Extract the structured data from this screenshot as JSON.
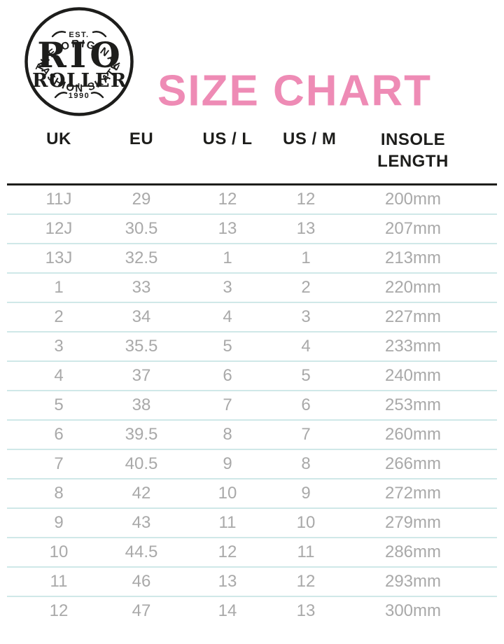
{
  "header": {
    "title": "SIZE CHART",
    "logo": {
      "top_text": "THE ORIGINAL",
      "est_text": "EST.",
      "brand_line1": "RIO",
      "brand_line2": "ROLLER",
      "year_text": "1990",
      "bottom_text": "FASHION SKATE"
    }
  },
  "colors": {
    "ink": "#1d1d1b",
    "accent-pink": "#ee8bb5",
    "body-gray": "#a9a9a9",
    "divider-teal": "#cfe8e8"
  },
  "table": {
    "headers": [
      "UK",
      "EU",
      "US / L",
      "US / M",
      "INSOLE LENGTH"
    ],
    "rows": [
      [
        "11J",
        "29",
        "12",
        "12",
        "200mm"
      ],
      [
        "12J",
        "30.5",
        "13",
        "13",
        "207mm"
      ],
      [
        "13J",
        "32.5",
        "1",
        "1",
        "213mm"
      ],
      [
        "1",
        "33",
        "3",
        "2",
        "220mm"
      ],
      [
        "2",
        "34",
        "4",
        "3",
        "227mm"
      ],
      [
        "3",
        "35.5",
        "5",
        "4",
        "233mm"
      ],
      [
        "4",
        "37",
        "6",
        "5",
        "240mm"
      ],
      [
        "5",
        "38",
        "7",
        "6",
        "253mm"
      ],
      [
        "6",
        "39.5",
        "8",
        "7",
        "260mm"
      ],
      [
        "7",
        "40.5",
        "9",
        "8",
        "266mm"
      ],
      [
        "8",
        "42",
        "10",
        "9",
        "272mm"
      ],
      [
        "9",
        "43",
        "11",
        "10",
        "279mm"
      ],
      [
        "10",
        "44.5",
        "12",
        "11",
        "286mm"
      ],
      [
        "11",
        "46",
        "13",
        "12",
        "293mm"
      ],
      [
        "12",
        "47",
        "14",
        "13",
        "300mm"
      ]
    ]
  },
  "chart_data": {
    "type": "table",
    "title": "SIZE CHART",
    "columns": [
      "UK",
      "EU",
      "US / L",
      "US / M",
      "INSOLE LENGTH"
    ],
    "rows": [
      [
        "11J",
        "29",
        "12",
        "12",
        "200mm"
      ],
      [
        "12J",
        "30.5",
        "13",
        "13",
        "207mm"
      ],
      [
        "13J",
        "32.5",
        "1",
        "1",
        "213mm"
      ],
      [
        "1",
        "33",
        "3",
        "2",
        "220mm"
      ],
      [
        "2",
        "34",
        "4",
        "3",
        "227mm"
      ],
      [
        "3",
        "35.5",
        "5",
        "4",
        "233mm"
      ],
      [
        "4",
        "37",
        "6",
        "5",
        "240mm"
      ],
      [
        "5",
        "38",
        "7",
        "6",
        "253mm"
      ],
      [
        "6",
        "39.5",
        "8",
        "7",
        "260mm"
      ],
      [
        "7",
        "40.5",
        "9",
        "8",
        "266mm"
      ],
      [
        "8",
        "42",
        "10",
        "9",
        "272mm"
      ],
      [
        "9",
        "43",
        "11",
        "10",
        "279mm"
      ],
      [
        "10",
        "44.5",
        "12",
        "11",
        "286mm"
      ],
      [
        "11",
        "46",
        "13",
        "12",
        "293mm"
      ],
      [
        "12",
        "47",
        "14",
        "13",
        "300mm"
      ]
    ]
  }
}
